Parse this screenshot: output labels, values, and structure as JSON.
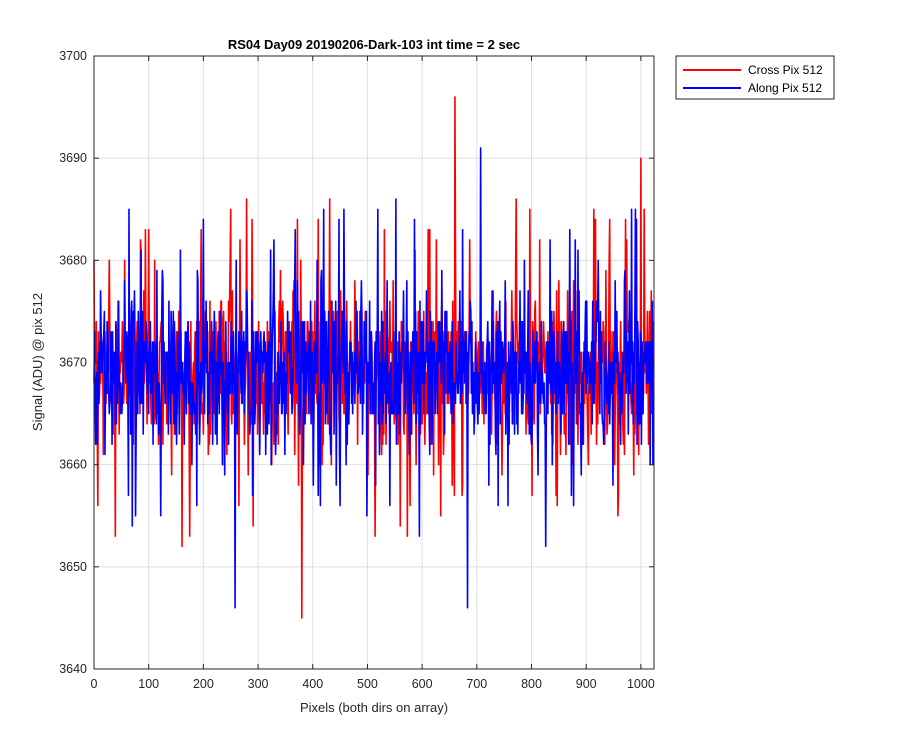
{
  "chart_data": {
    "type": "line",
    "title": "RS04 Day09 20190206-Dark-103 int time = 2 sec",
    "xlabel": "Pixels (both dirs on array)",
    "ylabel": "Signal (ADU) @ pix 512",
    "xlim": [
      0,
      1024
    ],
    "ylim": [
      3640,
      3700
    ],
    "xticks": [
      0,
      100,
      200,
      300,
      400,
      500,
      600,
      700,
      800,
      900,
      1000
    ],
    "yticks": [
      3640,
      3650,
      3660,
      3670,
      3680,
      3690,
      3700
    ],
    "grid": true,
    "legend_position": "outside-top-right",
    "series": [
      {
        "name": "Cross Pix 512",
        "color": "#ff0000",
        "mean": 3669,
        "spread": 4,
        "min": 3645,
        "max": 3696,
        "spikes": [
          {
            "x": 660,
            "y": 3696
          },
          {
            "x": 1000,
            "y": 3690
          },
          {
            "x": 380,
            "y": 3645
          }
        ]
      },
      {
        "name": "Along Pix 512",
        "color": "#0000ff",
        "mean": 3669,
        "spread": 4,
        "min": 3646,
        "max": 3691,
        "spikes": [
          {
            "x": 707,
            "y": 3691
          },
          {
            "x": 258,
            "y": 3646
          },
          {
            "x": 683,
            "y": 3646
          }
        ]
      }
    ]
  }
}
